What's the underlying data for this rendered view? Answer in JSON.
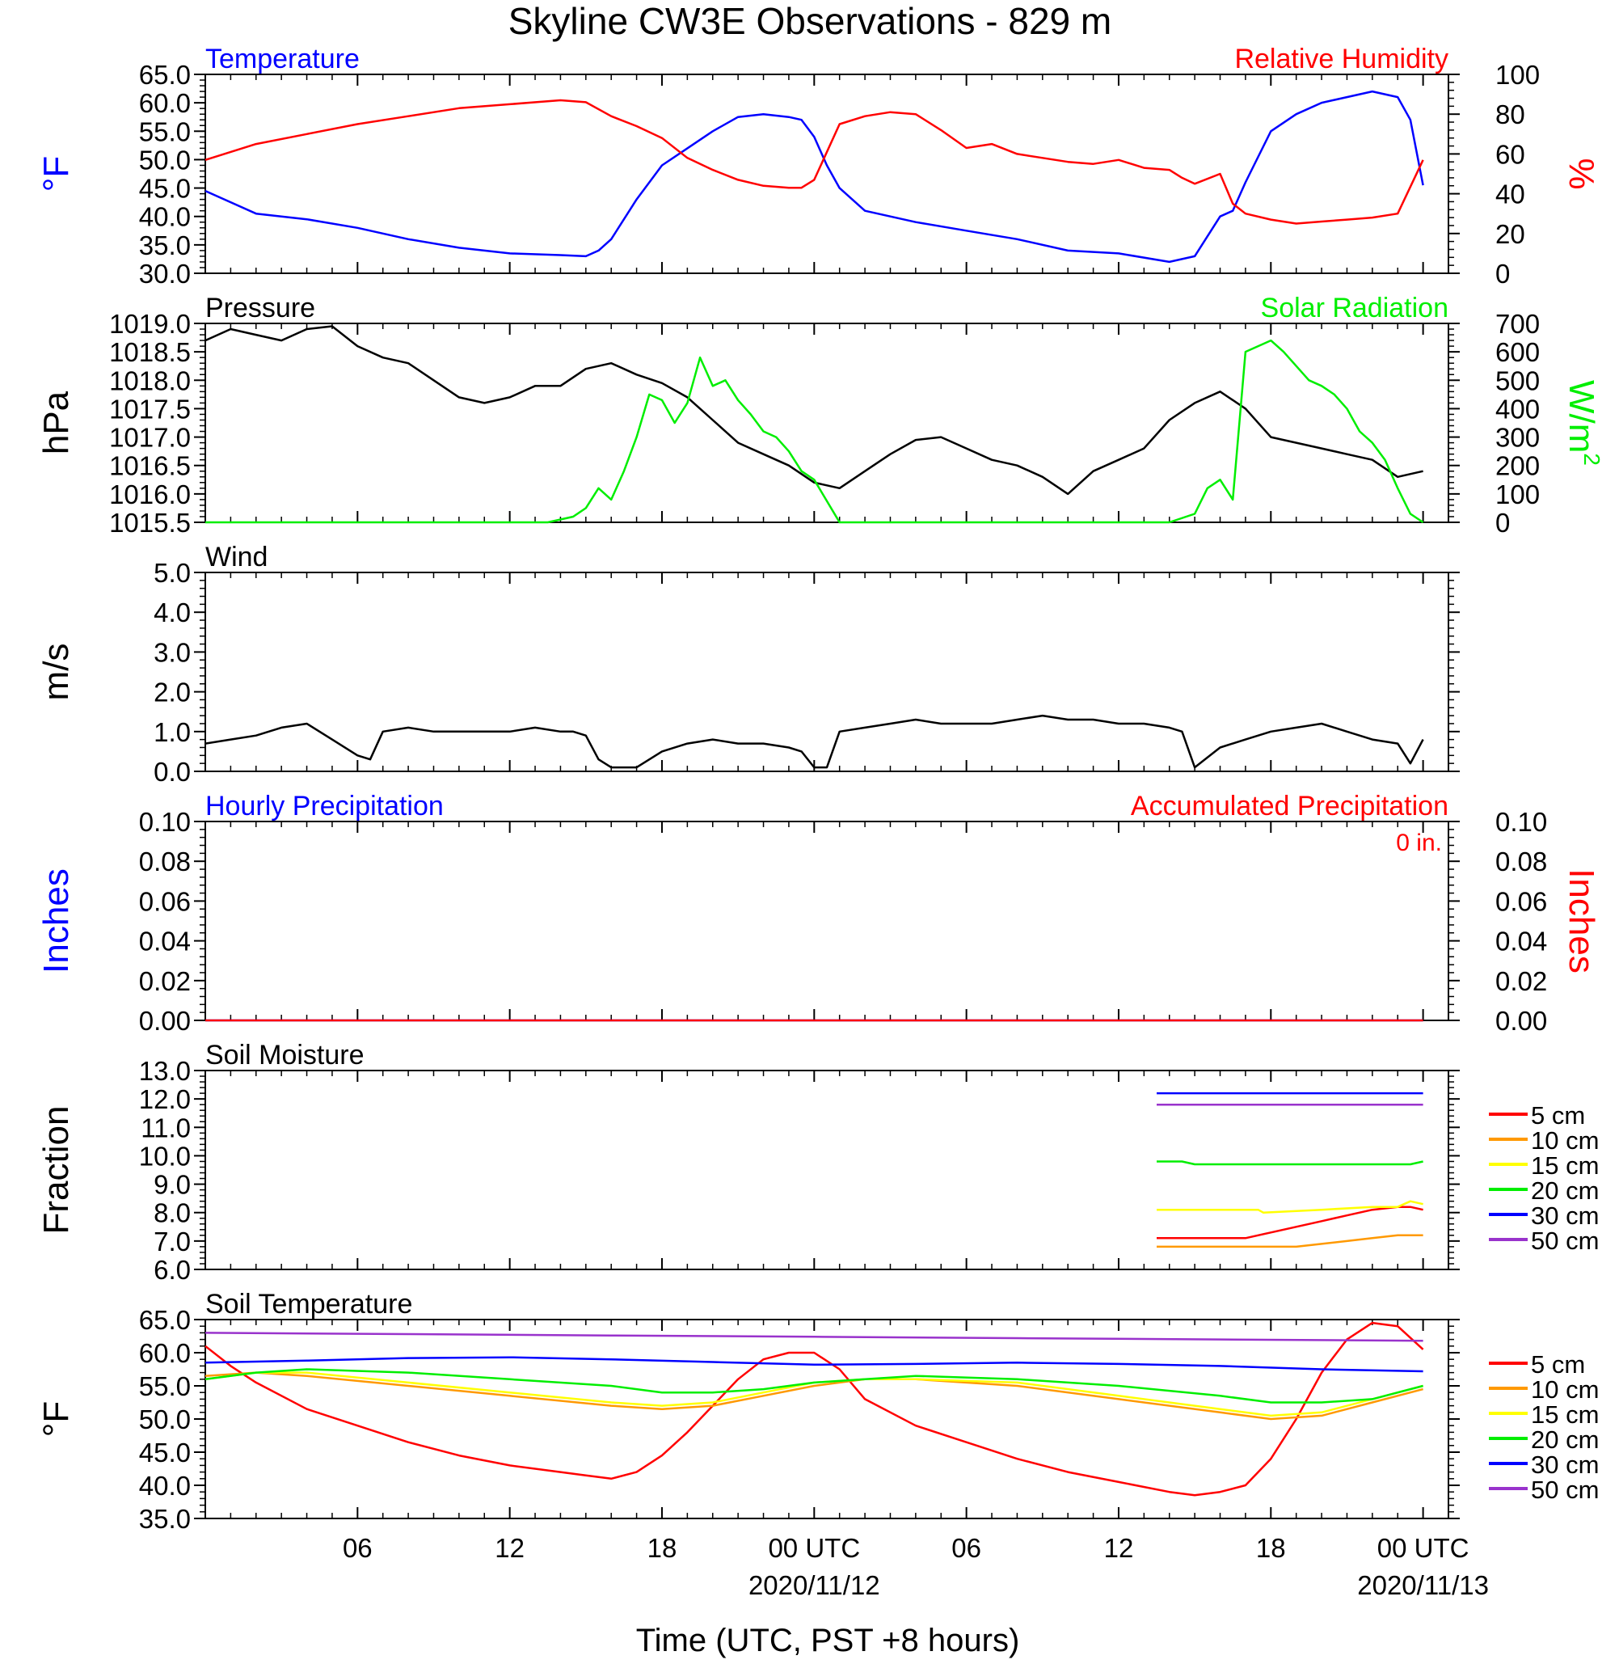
{
  "title": "Skyline CW3E Observations - 829 m",
  "x_axis": {
    "label": "Time (UTC, PST +8 hours)",
    "ticks": [
      "06",
      "12",
      "18",
      "00 UTC",
      "06",
      "12",
      "18",
      "00 UTC"
    ],
    "dates": [
      "2020/11/12",
      "2020/11/13"
    ]
  },
  "chart_data": [
    {
      "id": "temp_rh",
      "type": "line",
      "left_title": "Temperature",
      "right_title": "Relative Humidity",
      "ylabel_left": "°F",
      "ylabel_right": "%",
      "yticks_left": [
        "65.0",
        "60.0",
        "55.0",
        "50.0",
        "45.0",
        "40.0",
        "35.0",
        "30.0"
      ],
      "yticks_right": [
        "100",
        "80",
        "60",
        "40",
        "20",
        "0"
      ],
      "ylim_left": [
        30,
        65
      ],
      "ylim_right": [
        0,
        100
      ],
      "series": [
        {
          "name": "Temperature",
          "color": "#0000ff",
          "axis": "left",
          "x": [
            0,
            2,
            4,
            6,
            8,
            10,
            12,
            14,
            15,
            15.5,
            16,
            17,
            18,
            19,
            20,
            21,
            22,
            23,
            23.5,
            24,
            24.5,
            25,
            26,
            27,
            28,
            30,
            32,
            34,
            36,
            38,
            38.5,
            39,
            40,
            40.5,
            41,
            42,
            43,
            44,
            45,
            46,
            47,
            47.5,
            48
          ],
          "y": [
            44.5,
            40.5,
            39.5,
            38,
            36,
            34.5,
            33.5,
            33.2,
            33,
            34,
            36,
            43,
            49,
            52,
            55,
            57.5,
            58,
            57.5,
            57,
            54,
            49,
            45,
            41,
            40,
            39,
            37.5,
            36,
            34,
            33.5,
            32,
            32.5,
            33,
            40,
            41,
            46,
            55,
            58,
            60,
            61,
            62,
            61,
            57,
            45.5
          ]
        },
        {
          "name": "Relative Humidity",
          "color": "#ff0000",
          "axis": "right",
          "x": [
            0,
            2,
            4,
            6,
            8,
            10,
            12,
            14,
            15,
            16,
            17,
            18,
            19,
            20,
            21,
            22,
            23,
            23.5,
            24,
            25,
            26,
            27,
            28,
            29,
            30,
            31,
            32,
            33,
            34,
            35,
            36,
            37,
            38,
            38.5,
            39,
            40,
            40.5,
            41,
            42,
            43,
            44,
            45,
            46,
            47,
            48
          ],
          "y": [
            57,
            65,
            70,
            75,
            79,
            83,
            85,
            87,
            86,
            79,
            74,
            68,
            58,
            52,
            47,
            44,
            43,
            43,
            47,
            75,
            79,
            81,
            80,
            72,
            63,
            65,
            60,
            58,
            56,
            55,
            57,
            53,
            52,
            48,
            45,
            50,
            35,
            30,
            27,
            25,
            26,
            27,
            28,
            30,
            57
          ]
        }
      ]
    },
    {
      "id": "pressure_solar",
      "type": "line",
      "left_title": "Pressure",
      "right_title": "Solar Radiation",
      "ylabel_left": "hPa",
      "ylabel_right": "W/m",
      "ylabel_right_sup": "2",
      "yticks_left": [
        "1019.0",
        "1018.5",
        "1018.0",
        "1017.5",
        "1017.0",
        "1016.5",
        "1016.0",
        "1015.5"
      ],
      "yticks_right": [
        "700",
        "600",
        "500",
        "400",
        "300",
        "200",
        "100",
        "0"
      ],
      "ylim_left": [
        1015.5,
        1019.0
      ],
      "ylim_right": [
        0,
        700
      ],
      "series": [
        {
          "name": "Pressure",
          "color": "#000000",
          "axis": "left",
          "x": [
            0,
            1,
            2,
            3,
            4,
            5,
            6,
            7,
            8,
            9,
            10,
            11,
            12,
            13,
            14,
            15,
            16,
            17,
            18,
            19,
            20,
            21,
            22,
            23,
            24,
            25,
            26,
            27,
            28,
            29,
            30,
            31,
            32,
            33,
            34,
            35,
            36,
            37,
            38,
            39,
            40,
            41,
            42,
            43,
            44,
            45,
            46,
            47,
            48
          ],
          "y": [
            1018.7,
            1018.9,
            1018.8,
            1018.7,
            1018.9,
            1018.95,
            1018.6,
            1018.4,
            1018.3,
            1018,
            1017.7,
            1017.6,
            1017.7,
            1017.9,
            1017.9,
            1018.2,
            1018.3,
            1018.1,
            1017.95,
            1017.7,
            1017.3,
            1016.9,
            1016.7,
            1016.5,
            1016.2,
            1016.1,
            1016.4,
            1016.7,
            1016.95,
            1017.0,
            1016.8,
            1016.6,
            1016.5,
            1016.3,
            1016.0,
            1016.4,
            1016.6,
            1016.8,
            1017.3,
            1017.6,
            1017.8,
            1017.5,
            1017.0,
            1016.9,
            1016.8,
            1016.7,
            1016.6,
            1016.3,
            1016.4
          ]
        },
        {
          "name": "Solar Radiation",
          "color": "#00ee00",
          "axis": "right",
          "x": [
            0,
            13.5,
            14.5,
            15,
            15.5,
            16,
            16.5,
            17,
            17.5,
            18,
            18.5,
            19,
            19.5,
            20,
            20.5,
            21,
            21.5,
            22,
            22.5,
            23,
            23.5,
            24,
            25,
            38,
            39,
            39.5,
            40,
            40.5,
            41,
            41.5,
            42,
            42.5,
            43,
            43.5,
            44,
            44.5,
            45,
            45.5,
            46,
            46.5,
            47,
            47.5,
            48
          ],
          "y": [
            0,
            0,
            20,
            50,
            120,
            80,
            180,
            300,
            450,
            430,
            350,
            420,
            580,
            480,
            500,
            430,
            380,
            320,
            300,
            250,
            180,
            150,
            0,
            0,
            30,
            120,
            150,
            80,
            600,
            620,
            640,
            600,
            550,
            500,
            480,
            450,
            400,
            320,
            280,
            220,
            120,
            30,
            0
          ]
        }
      ]
    },
    {
      "id": "wind",
      "type": "line",
      "left_title": "Wind",
      "ylabel_left": "m/s",
      "yticks_left": [
        "5.0",
        "4.0",
        "3.0",
        "2.0",
        "1.0",
        "0.0"
      ],
      "ylim_left": [
        0,
        5
      ],
      "series": [
        {
          "name": "Wind",
          "color": "#000000",
          "axis": "left",
          "x": [
            0,
            1,
            2,
            3,
            4,
            5,
            6,
            6.5,
            7,
            8,
            9,
            10,
            11,
            12,
            13,
            14,
            14.5,
            15,
            15.5,
            16,
            17,
            18,
            19,
            20,
            21,
            22,
            23,
            23.5,
            24,
            24.5,
            25,
            26,
            27,
            28,
            29,
            30,
            31,
            32,
            33,
            34,
            35,
            36,
            37,
            38,
            38.5,
            39,
            40,
            41,
            42,
            43,
            44,
            45,
            46,
            47,
            47.5,
            48
          ],
          "y": [
            0.7,
            0.8,
            0.9,
            1.1,
            1.2,
            0.8,
            0.4,
            0.3,
            1.0,
            1.1,
            1.0,
            1.0,
            1.0,
            1.0,
            1.1,
            1.0,
            1.0,
            0.9,
            0.3,
            0.1,
            0.1,
            0.5,
            0.7,
            0.8,
            0.7,
            0.7,
            0.6,
            0.5,
            0.1,
            0.1,
            1.0,
            1.1,
            1.2,
            1.3,
            1.2,
            1.2,
            1.2,
            1.3,
            1.4,
            1.3,
            1.3,
            1.2,
            1.2,
            1.1,
            1.0,
            0.1,
            0.6,
            0.8,
            1.0,
            1.1,
            1.2,
            1.0,
            0.8,
            0.7,
            0.2,
            0.8
          ]
        }
      ]
    },
    {
      "id": "precip",
      "type": "line",
      "left_title": "Hourly Precipitation",
      "right_title": "Accumulated Precipitation",
      "annotation": "0 in.",
      "ylabel_left": "Inches",
      "ylabel_right": "Inches",
      "yticks_left": [
        "0.10",
        "0.08",
        "0.06",
        "0.04",
        "0.02",
        "0.00"
      ],
      "yticks_right": [
        "0.10",
        "0.08",
        "0.06",
        "0.04",
        "0.02",
        "0.00"
      ],
      "ylim_left": [
        0,
        0.1
      ],
      "series": [
        {
          "name": "Hourly Precipitation",
          "color": "#0000ff",
          "axis": "left",
          "x": [
            0,
            48
          ],
          "y": [
            0,
            0
          ]
        },
        {
          "name": "Accumulated Precipitation",
          "color": "#ff0000",
          "axis": "left",
          "x": [
            0,
            48
          ],
          "y": [
            0,
            0
          ]
        }
      ]
    },
    {
      "id": "soil_moisture",
      "type": "line",
      "left_title": "Soil Moisture",
      "ylabel_left": "Fraction",
      "yticks_left": [
        "13.0",
        "12.0",
        "11.0",
        "10.0",
        "9.0",
        "8.0",
        "7.0",
        "6.0"
      ],
      "ylim_left": [
        6,
        13
      ],
      "legend": [
        {
          "label": "5 cm",
          "color": "#ff0000"
        },
        {
          "label": "10 cm",
          "color": "#ff9900"
        },
        {
          "label": "15 cm",
          "color": "#ffff00"
        },
        {
          "label": "20 cm",
          "color": "#00ee00"
        },
        {
          "label": "30 cm",
          "color": "#0000ff"
        },
        {
          "label": "50 cm",
          "color": "#9933cc"
        }
      ],
      "series": [
        {
          "color": "#ff0000",
          "axis": "left",
          "x": [
            37.5,
            41,
            42,
            43,
            44,
            45,
            46,
            47,
            47.5,
            48
          ],
          "y": [
            7.1,
            7.1,
            7.3,
            7.5,
            7.7,
            7.9,
            8.1,
            8.2,
            8.2,
            8.1
          ]
        },
        {
          "color": "#ff9900",
          "axis": "left",
          "x": [
            37.5,
            43,
            44,
            45,
            46,
            47,
            48
          ],
          "y": [
            6.8,
            6.8,
            6.9,
            7.0,
            7.1,
            7.2,
            7.2
          ]
        },
        {
          "color": "#ffff00",
          "axis": "left",
          "x": [
            37.5,
            41.5,
            41.7,
            44,
            46,
            47,
            47.5,
            48
          ],
          "y": [
            8.1,
            8.1,
            8.0,
            8.1,
            8.2,
            8.2,
            8.4,
            8.3
          ]
        },
        {
          "color": "#00ee00",
          "axis": "left",
          "x": [
            37.5,
            38.5,
            39,
            47.5,
            48
          ],
          "y": [
            9.8,
            9.8,
            9.7,
            9.7,
            9.8
          ]
        },
        {
          "color": "#0000ff",
          "axis": "left",
          "x": [
            37.5,
            48
          ],
          "y": [
            12.2,
            12.2
          ]
        },
        {
          "color": "#9933cc",
          "axis": "left",
          "x": [
            37.5,
            48
          ],
          "y": [
            11.8,
            11.8
          ]
        }
      ]
    },
    {
      "id": "soil_temperature",
      "type": "line",
      "left_title": "Soil Temperature",
      "ylabel_left": "°F",
      "yticks_left": [
        "65.0",
        "60.0",
        "55.0",
        "50.0",
        "45.0",
        "40.0",
        "35.0"
      ],
      "ylim_left": [
        35,
        65
      ],
      "legend": [
        {
          "label": "5 cm",
          "color": "#ff0000"
        },
        {
          "label": "10 cm",
          "color": "#ff9900"
        },
        {
          "label": "15 cm",
          "color": "#ffff00"
        },
        {
          "label": "20 cm",
          "color": "#00ee00"
        },
        {
          "label": "30 cm",
          "color": "#0000ff"
        },
        {
          "label": "50 cm",
          "color": "#9933cc"
        }
      ],
      "series": [
        {
          "color": "#ff0000",
          "axis": "left",
          "x": [
            0,
            1,
            2,
            4,
            6,
            8,
            10,
            12,
            14,
            15,
            16,
            17,
            18,
            19,
            20,
            21,
            22,
            23,
            24,
            25,
            26,
            28,
            30,
            32,
            34,
            36,
            38,
            39,
            40,
            41,
            42,
            43,
            44,
            45,
            46,
            47,
            48
          ],
          "y": [
            61,
            58,
            55.5,
            51.5,
            49,
            46.5,
            44.5,
            43,
            42,
            41.5,
            41,
            42,
            44.5,
            48,
            52,
            56,
            59,
            60,
            60,
            57.5,
            53,
            49,
            46.5,
            44,
            42,
            40.5,
            39,
            38.5,
            39,
            40,
            44,
            50,
            57,
            62,
            64.5,
            64,
            60.5
          ]
        },
        {
          "color": "#ff9900",
          "axis": "left",
          "x": [
            0,
            2,
            4,
            8,
            12,
            16,
            18,
            20,
            22,
            24,
            26,
            28,
            32,
            36,
            40,
            42,
            44,
            46,
            48
          ],
          "y": [
            56.5,
            57,
            56.5,
            55,
            53.5,
            52,
            51.5,
            52,
            53.5,
            55,
            56,
            56,
            55,
            53,
            51,
            50,
            50.5,
            52.5,
            54.5
          ]
        },
        {
          "color": "#ffff00",
          "axis": "left",
          "x": [
            0,
            2,
            4,
            8,
            12,
            16,
            18,
            20,
            22,
            24,
            26,
            28,
            32,
            36,
            40,
            42,
            44,
            46,
            48
          ],
          "y": [
            56,
            57,
            57,
            55.5,
            54,
            52.5,
            52,
            52.5,
            54,
            55.5,
            56,
            56,
            55.5,
            53.5,
            51.5,
            50.5,
            51,
            53,
            55
          ]
        },
        {
          "color": "#00ee00",
          "axis": "left",
          "x": [
            0,
            2,
            4,
            8,
            12,
            16,
            18,
            20,
            22,
            24,
            26,
            28,
            32,
            36,
            40,
            42,
            44,
            46,
            48
          ],
          "y": [
            56,
            57,
            57.5,
            57,
            56,
            55,
            54,
            54,
            54.5,
            55.5,
            56,
            56.5,
            56,
            55,
            53.5,
            52.5,
            52.5,
            53,
            55
          ]
        },
        {
          "color": "#0000ff",
          "axis": "left",
          "x": [
            0,
            4,
            8,
            12,
            16,
            20,
            24,
            28,
            32,
            36,
            40,
            44,
            48
          ],
          "y": [
            58.5,
            58.8,
            59.2,
            59.3,
            59,
            58.6,
            58.2,
            58.3,
            58.5,
            58.3,
            58,
            57.5,
            57.2
          ]
        },
        {
          "color": "#9933cc",
          "axis": "left",
          "x": [
            0,
            8,
            16,
            24,
            32,
            40,
            48
          ],
          "y": [
            63,
            62.8,
            62.6,
            62.4,
            62.2,
            62,
            61.8
          ]
        }
      ]
    }
  ]
}
